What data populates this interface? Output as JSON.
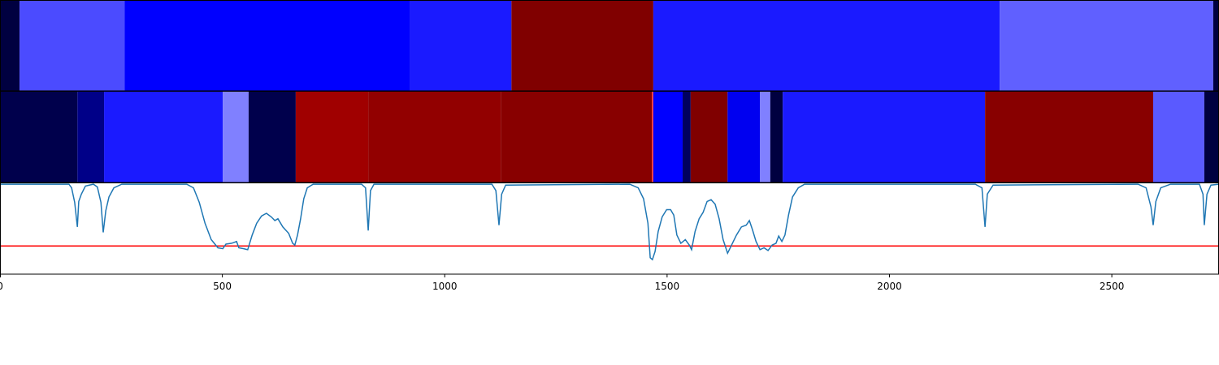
{
  "chart_data": [
    {
      "type": "segments",
      "xlim": [
        0,
        2741
      ],
      "edges": [
        0,
        44,
        280,
        921,
        1150,
        1469,
        2248,
        2728,
        2741
      ],
      "colors": [
        "#000040",
        "#4b4bff",
        "#0000ff",
        "#1a1aff",
        "#800000",
        "#1a1aff",
        "#6060ff",
        "#000040"
      ]
    },
    {
      "type": "segments",
      "xlim": [
        0,
        2741
      ],
      "edges": [
        0,
        174,
        234,
        501,
        559,
        665,
        828,
        1126,
        1466,
        1469,
        1535,
        1553,
        1636,
        1709,
        1732,
        1760,
        2215,
        2593,
        2708,
        2741
      ],
      "colors": [
        "#00004c",
        "#000088",
        "#1a1aff",
        "#8080ff",
        "#00004c",
        "#a00000",
        "#920000",
        "#880000",
        "#ff3030",
        "#0000ff",
        "#000060",
        "#800000",
        "#0000f0",
        "#8080ff",
        "#000040",
        "#1a1aff",
        "#880000",
        "#5a5aff",
        "#000040"
      ]
    },
    {
      "type": "line",
      "xlim": [
        0,
        2741
      ],
      "ylim": [
        0,
        1
      ],
      "color": "#1f77b4",
      "xticks": [
        0,
        500,
        1000,
        1500,
        2000,
        2500
      ],
      "threshold": 0.31,
      "threshold_color": "#ff0000",
      "x": [
        0,
        155,
        161,
        168,
        174,
        177,
        183,
        192,
        210,
        219,
        227,
        232,
        238,
        245,
        256,
        274,
        420,
        435,
        448,
        461,
        475,
        490,
        501,
        508,
        521,
        532,
        537,
        548,
        557,
        567,
        577,
        588,
        599,
        610,
        618,
        625,
        636,
        649,
        658,
        663,
        669,
        676,
        683,
        691,
        704,
        813,
        822,
        828,
        833,
        841,
        1106,
        1115,
        1122,
        1128,
        1137,
        1416,
        1435,
        1447,
        1457,
        1462,
        1467,
        1473,
        1480,
        1489,
        1499,
        1508,
        1515,
        1522,
        1531,
        1541,
        1550,
        1555,
        1563,
        1572,
        1581,
        1590,
        1599,
        1608,
        1617,
        1626,
        1636,
        1645,
        1656,
        1667,
        1678,
        1685,
        1692,
        1700,
        1709,
        1718,
        1727,
        1736,
        1745,
        1751,
        1758,
        1765,
        1773,
        1782,
        1795,
        1809,
        2193,
        2208,
        2215,
        2220,
        2233,
        2559,
        2577,
        2588,
        2593,
        2599,
        2610,
        2632,
        2697,
        2705,
        2708,
        2714,
        2723,
        2741
      ],
      "values": [
        0.99,
        0.99,
        0.95,
        0.79,
        0.52,
        0.8,
        0.88,
        0.97,
        0.99,
        0.96,
        0.79,
        0.46,
        0.7,
        0.85,
        0.95,
        0.99,
        0.99,
        0.95,
        0.79,
        0.56,
        0.38,
        0.29,
        0.28,
        0.33,
        0.34,
        0.36,
        0.29,
        0.28,
        0.27,
        0.43,
        0.56,
        0.64,
        0.67,
        0.63,
        0.59,
        0.61,
        0.52,
        0.45,
        0.34,
        0.32,
        0.43,
        0.61,
        0.83,
        0.95,
        0.99,
        0.99,
        0.95,
        0.48,
        0.92,
        0.99,
        0.99,
        0.92,
        0.54,
        0.88,
        0.98,
        0.99,
        0.95,
        0.83,
        0.56,
        0.18,
        0.16,
        0.25,
        0.47,
        0.63,
        0.71,
        0.71,
        0.65,
        0.43,
        0.34,
        0.38,
        0.32,
        0.27,
        0.47,
        0.61,
        0.68,
        0.8,
        0.82,
        0.77,
        0.61,
        0.38,
        0.23,
        0.32,
        0.43,
        0.52,
        0.54,
        0.59,
        0.49,
        0.36,
        0.27,
        0.29,
        0.26,
        0.32,
        0.34,
        0.42,
        0.36,
        0.43,
        0.65,
        0.85,
        0.95,
        0.99,
        0.99,
        0.95,
        0.52,
        0.88,
        0.98,
        0.99,
        0.95,
        0.74,
        0.54,
        0.8,
        0.95,
        0.99,
        0.99,
        0.88,
        0.54,
        0.88,
        0.98,
        0.99
      ]
    }
  ]
}
